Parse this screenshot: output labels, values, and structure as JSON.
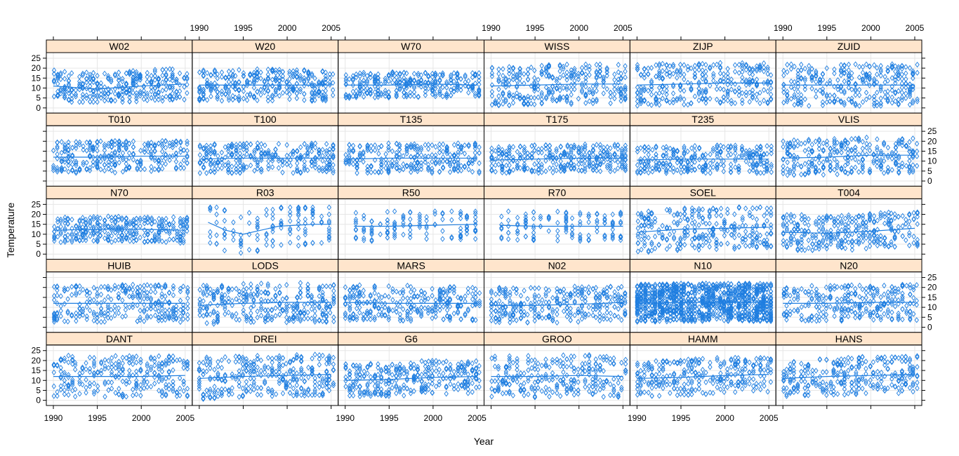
{
  "chart_data": {
    "type": "scatter",
    "title": "",
    "xlabel": "Year",
    "ylabel": "Temperature",
    "xlim": [
      1989.2,
      2005.8
    ],
    "ylim": [
      -2.6,
      27.8
    ],
    "x_ticks": [
      1990,
      1995,
      2000,
      2005
    ],
    "y_ticks": [
      0,
      5,
      10,
      15,
      20,
      25
    ],
    "colors": {
      "points": "#1f7ee0",
      "smooth": "#1f7ee0",
      "strip_bg": "#ffe5cc",
      "panel_border": "#000000",
      "grid": "#e6e6e6"
    },
    "rows": [
      [
        "W02",
        "W20",
        "W70",
        "WISS",
        "ZIJP",
        "ZUID"
      ],
      [
        "T010",
        "T100",
        "T135",
        "T175",
        "T235",
        "VLIS"
      ],
      [
        "N70",
        "R03",
        "R50",
        "R70",
        "SOEL",
        "T004"
      ],
      [
        "HUIB",
        "LODS",
        "MARS",
        "N02",
        "N10",
        "N20"
      ],
      [
        "DANT",
        "DREI",
        "G6",
        "GROO",
        "HAMM",
        "HANS"
      ]
    ],
    "panels": {
      "W02": {
        "smooth": [
          [
            1990,
            11
          ],
          [
            1995,
            9.5
          ],
          [
            2000,
            11
          ],
          [
            2005,
            12
          ]
        ],
        "range": [
          4,
          20
        ]
      },
      "W20": {
        "smooth": [
          [
            1990,
            11.5
          ],
          [
            1995,
            11.5
          ],
          [
            2000,
            11.5
          ],
          [
            2005,
            11.5
          ]
        ],
        "range": [
          4,
          20
        ]
      },
      "W70": {
        "smooth": [
          [
            1990,
            11.5
          ],
          [
            1995,
            11.5
          ],
          [
            2000,
            12
          ],
          [
            2005,
            11.5
          ]
        ],
        "range": [
          6,
          19
        ]
      },
      "WISS": {
        "smooth": [
          [
            1990,
            11
          ],
          [
            1995,
            11.5
          ],
          [
            2000,
            12
          ],
          [
            2005,
            12
          ]
        ],
        "range": [
          1,
          21
        ]
      },
      "ZIJP": {
        "smooth": [
          [
            1990,
            11.5
          ],
          [
            1995,
            12
          ],
          [
            2000,
            12.5
          ],
          [
            2005,
            12.5
          ]
        ],
        "range": [
          1,
          22
        ]
      },
      "ZUID": {
        "smooth": [
          [
            1990,
            11.5
          ],
          [
            1995,
            11.5
          ],
          [
            2000,
            11.5
          ],
          [
            2005,
            11.5
          ]
        ],
        "range": [
          1,
          22
        ]
      },
      "T010": {
        "smooth": [
          [
            1990,
            12
          ],
          [
            1995,
            12
          ],
          [
            2000,
            12.5
          ],
          [
            2005,
            12.5
          ]
        ],
        "range": [
          4,
          20
        ]
      },
      "T100": {
        "smooth": [
          [
            1990,
            11
          ],
          [
            1995,
            11.5
          ],
          [
            2000,
            11.5
          ],
          [
            2005,
            11.5
          ]
        ],
        "range": [
          5,
          20
        ]
      },
      "T135": {
        "smooth": [
          [
            1990,
            11
          ],
          [
            1995,
            11.5
          ],
          [
            2000,
            11.5
          ],
          [
            2005,
            11.5
          ]
        ],
        "range": [
          5,
          20
        ]
      },
      "T175": {
        "smooth": [
          [
            1990,
            10.5
          ],
          [
            1995,
            11
          ],
          [
            2000,
            11.5
          ],
          [
            2005,
            11.5
          ]
        ],
        "range": [
          5,
          19
        ]
      },
      "T235": {
        "smooth": [
          [
            1990,
            10.5
          ],
          [
            1995,
            11
          ],
          [
            2000,
            11
          ],
          [
            2005,
            11
          ]
        ],
        "range": [
          5,
          19
        ]
      },
      "VLIS": {
        "smooth": [
          [
            1990,
            11.5
          ],
          [
            1995,
            12
          ],
          [
            2000,
            13
          ],
          [
            2005,
            13
          ]
        ],
        "range": [
          3,
          21
        ]
      },
      "N70": {
        "smooth": [
          [
            1990,
            12
          ],
          [
            1995,
            12.5
          ],
          [
            2000,
            12.5
          ],
          [
            2005,
            12
          ]
        ],
        "range": [
          6,
          19
        ]
      },
      "R03": {
        "smooth": [
          [
            1991,
            16
          ],
          [
            1993,
            12
          ],
          [
            1995,
            10
          ],
          [
            1997,
            12
          ],
          [
            1999,
            14
          ],
          [
            2003,
            15
          ],
          [
            2005,
            15
          ]
        ],
        "range": [
          1,
          22
        ]
      },
      "R50": {
        "smooth": [
          [
            1991,
            14
          ],
          [
            1995,
            14
          ],
          [
            2000,
            14.5
          ],
          [
            2005,
            15
          ]
        ],
        "range": [
          5,
          20
        ]
      },
      "R70": {
        "smooth": [
          [
            1991,
            14.5
          ],
          [
            1995,
            14
          ],
          [
            2000,
            14
          ],
          [
            2005,
            14
          ]
        ],
        "range": [
          5,
          20
        ]
      },
      "SOEL": {
        "smooth": [
          [
            1990,
            11
          ],
          [
            1995,
            12.5
          ],
          [
            2000,
            13
          ],
          [
            2005,
            13.5
          ]
        ],
        "range": [
          2,
          23
        ]
      },
      "T004": {
        "smooth": [
          [
            1990,
            11
          ],
          [
            1995,
            10.5
          ],
          [
            2000,
            11.5
          ],
          [
            2005,
            13
          ]
        ],
        "range": [
          3,
          21
        ]
      },
      "HUIB": {
        "smooth": [
          [
            1990,
            12
          ],
          [
            1995,
            12
          ],
          [
            2000,
            12
          ],
          [
            2005,
            12
          ]
        ],
        "range": [
          2,
          21
        ]
      },
      "LODS": {
        "smooth": [
          [
            1990,
            11
          ],
          [
            1995,
            12
          ],
          [
            2000,
            12.5
          ],
          [
            2005,
            12.5
          ]
        ],
        "range": [
          2,
          22
        ]
      },
      "MARS": {
        "smooth": [
          [
            1990,
            12.5
          ],
          [
            1995,
            12
          ],
          [
            2000,
            12
          ],
          [
            2005,
            12
          ]
        ],
        "range": [
          3,
          21
        ]
      },
      "N02": {
        "smooth": [
          [
            1990,
            11
          ],
          [
            1995,
            11
          ],
          [
            2000,
            11.5
          ],
          [
            2005,
            12.5
          ]
        ],
        "range": [
          2,
          20
        ]
      },
      "N10": {
        "smooth": [
          [
            1990,
            12
          ],
          [
            1995,
            12.5
          ],
          [
            2000,
            12.5
          ],
          [
            2005,
            12.5
          ]
        ],
        "range": [
          2,
          21
        ]
      },
      "N20": {
        "smooth": [
          [
            1990,
            12
          ],
          [
            1995,
            12
          ],
          [
            2000,
            12.5
          ],
          [
            2005,
            12.5
          ]
        ],
        "range": [
          3,
          21
        ]
      },
      "DANT": {
        "smooth": [
          [
            1990,
            12
          ],
          [
            1995,
            12
          ],
          [
            2000,
            12
          ],
          [
            2005,
            12.5
          ]
        ],
        "range": [
          1,
          22
        ]
      },
      "DREI": {
        "smooth": [
          [
            1990,
            11
          ],
          [
            1995,
            12
          ],
          [
            2000,
            12.5
          ],
          [
            2005,
            13
          ]
        ],
        "range": [
          1,
          22
        ]
      },
      "G6": {
        "smooth": [
          [
            1990,
            10
          ],
          [
            1995,
            10.5
          ],
          [
            2000,
            11.5
          ],
          [
            2005,
            12
          ]
        ],
        "range": [
          3,
          20
        ]
      },
      "GROO": {
        "smooth": [
          [
            1990,
            12
          ],
          [
            1995,
            12
          ],
          [
            2000,
            12.5
          ],
          [
            2005,
            12
          ]
        ],
        "range": [
          1,
          22
        ]
      },
      "HAMM": {
        "smooth": [
          [
            1990,
            11
          ],
          [
            1995,
            11.5
          ],
          [
            2000,
            12.5
          ],
          [
            2005,
            13
          ]
        ],
        "range": [
          3,
          21
        ]
      },
      "HANS": {
        "smooth": [
          [
            1990,
            11
          ],
          [
            1995,
            12
          ],
          [
            2000,
            12.5
          ],
          [
            2005,
            13
          ]
        ],
        "range": [
          2,
          21
        ]
      }
    }
  }
}
